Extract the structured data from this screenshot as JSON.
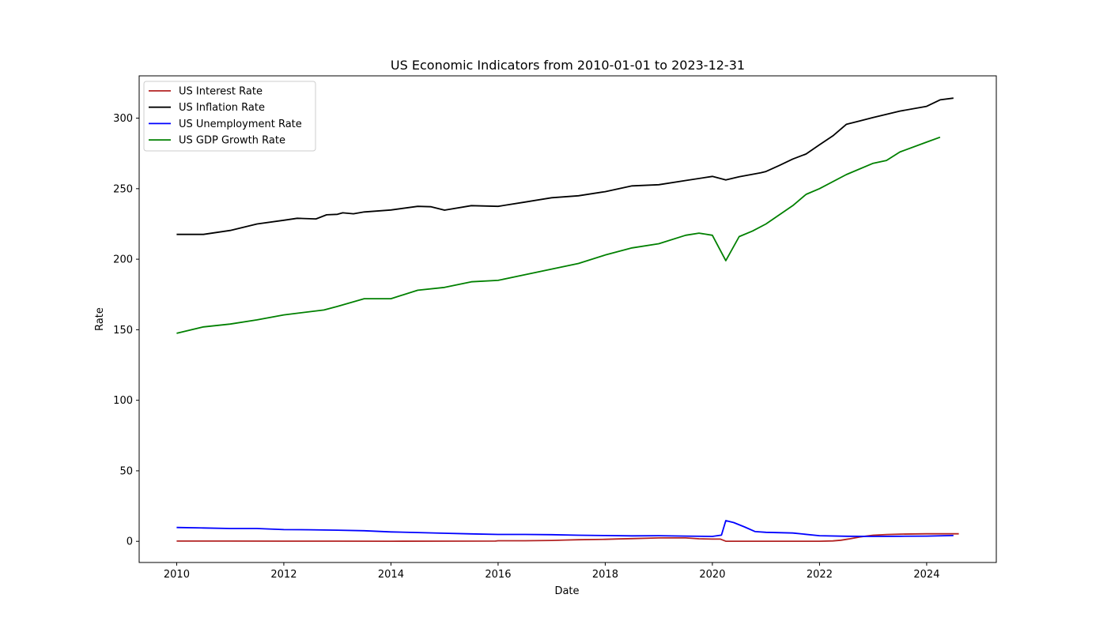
{
  "chart_data": {
    "type": "line",
    "title": "US Economic Indicators from 2010-01-01 to 2023-12-31",
    "xlabel": "Date",
    "ylabel": "Rate",
    "xlim": [
      2009.3,
      2025.3
    ],
    "ylim": [
      -15,
      330
    ],
    "x_ticks": [
      2010,
      2012,
      2014,
      2016,
      2018,
      2020,
      2022,
      2024
    ],
    "y_ticks": [
      0,
      50,
      100,
      150,
      200,
      250,
      300
    ],
    "grid": false,
    "legend": "upper left",
    "series": [
      {
        "name": "US Interest Rate",
        "color": "#b22222",
        "x": [
          2010.0,
          2011.0,
          2012.0,
          2013.0,
          2014.0,
          2015.0,
          2015.95,
          2016.0,
          2016.5,
          2017.0,
          2017.25,
          2017.5,
          2018.0,
          2018.25,
          2018.5,
          2019.0,
          2019.5,
          2019.75,
          2020.0,
          2020.15,
          2020.25,
          2021.0,
          2022.0,
          2022.25,
          2022.4,
          2022.55,
          2022.75,
          2023.0,
          2023.25,
          2023.5,
          2024.0,
          2024.6
        ],
        "values": [
          0.15,
          0.18,
          0.1,
          0.11,
          0.09,
          0.12,
          0.2,
          0.38,
          0.4,
          0.65,
          0.9,
          1.15,
          1.4,
          1.7,
          1.9,
          2.4,
          2.4,
          1.8,
          1.55,
          1.55,
          0.05,
          0.08,
          0.08,
          0.3,
          0.8,
          1.7,
          3.1,
          4.3,
          4.8,
          5.1,
          5.33,
          5.33
        ]
      },
      {
        "name": "US Inflation Rate",
        "color": "#000000",
        "x": [
          2010.0,
          2010.5,
          2011.0,
          2011.5,
          2012.0,
          2012.25,
          2012.6,
          2012.8,
          2013.0,
          2013.1,
          2013.3,
          2013.5,
          2014.0,
          2014.5,
          2014.75,
          2015.0,
          2015.5,
          2016.0,
          2016.5,
          2017.0,
          2017.5,
          2018.0,
          2018.5,
          2019.0,
          2019.5,
          2020.0,
          2020.25,
          2020.5,
          2020.9,
          2021.0,
          2021.25,
          2021.5,
          2021.75,
          2022.0,
          2022.25,
          2022.5,
          2022.75,
          2023.0,
          2023.5,
          2024.0,
          2024.25,
          2024.5
        ],
        "values": [
          217.6,
          217.6,
          220.4,
          225.0,
          227.6,
          229.0,
          228.6,
          231.5,
          231.8,
          232.9,
          232.2,
          233.5,
          234.9,
          237.5,
          237.2,
          234.8,
          238.0,
          237.5,
          240.5,
          243.6,
          245.0,
          247.9,
          252.0,
          252.8,
          255.8,
          258.7,
          256.2,
          258.5,
          261.2,
          262.2,
          266.5,
          271.0,
          274.6,
          281.1,
          287.5,
          295.6,
          298.0,
          300.5,
          305.0,
          308.4,
          313.0,
          314.2
        ]
      },
      {
        "name": "US Unemployment Rate",
        "color": "#0000ff",
        "x": [
          2010.0,
          2010.5,
          2011.0,
          2011.5,
          2012.0,
          2012.5,
          2013.0,
          2013.5,
          2014.0,
          2014.5,
          2015.0,
          2015.5,
          2016.0,
          2016.5,
          2017.0,
          2017.5,
          2018.0,
          2018.5,
          2019.0,
          2019.5,
          2020.0,
          2020.17,
          2020.25,
          2020.4,
          2020.6,
          2020.8,
          2021.0,
          2021.5,
          2022.0,
          2022.5,
          2023.0,
          2023.5,
          2024.0,
          2024.5
        ],
        "values": [
          9.8,
          9.5,
          9.1,
          9.1,
          8.3,
          8.2,
          7.9,
          7.5,
          6.7,
          6.2,
          5.7,
          5.3,
          4.9,
          4.9,
          4.7,
          4.3,
          4.1,
          3.9,
          4.0,
          3.7,
          3.5,
          4.4,
          14.7,
          13.3,
          10.2,
          6.9,
          6.4,
          5.9,
          4.0,
          3.6,
          3.5,
          3.6,
          3.7,
          4.1
        ]
      },
      {
        "name": "US GDP Growth Rate",
        "color": "#008000",
        "x": [
          2010.0,
          2010.5,
          2011.0,
          2011.5,
          2012.0,
          2012.75,
          2013.0,
          2013.5,
          2014.0,
          2014.5,
          2015.0,
          2015.5,
          2016.0,
          2016.5,
          2017.0,
          2017.5,
          2018.0,
          2018.5,
          2019.0,
          2019.5,
          2019.75,
          2020.0,
          2020.25,
          2020.5,
          2020.75,
          2021.0,
          2021.5,
          2021.75,
          2022.0,
          2022.5,
          2023.0,
          2023.25,
          2023.5,
          2024.0,
          2024.25
        ],
        "values": [
          147.5,
          152.0,
          154.0,
          157.0,
          160.5,
          164.0,
          166.5,
          172.0,
          172.0,
          178.0,
          180.0,
          184.0,
          185.0,
          189.0,
          193.0,
          197.0,
          203.0,
          208.0,
          211.0,
          217.0,
          218.5,
          217.0,
          199.0,
          216.0,
          220.0,
          225.0,
          238.0,
          246.0,
          250.0,
          260.0,
          268.0,
          270.0,
          276.0,
          283.0,
          286.5
        ]
      }
    ]
  }
}
